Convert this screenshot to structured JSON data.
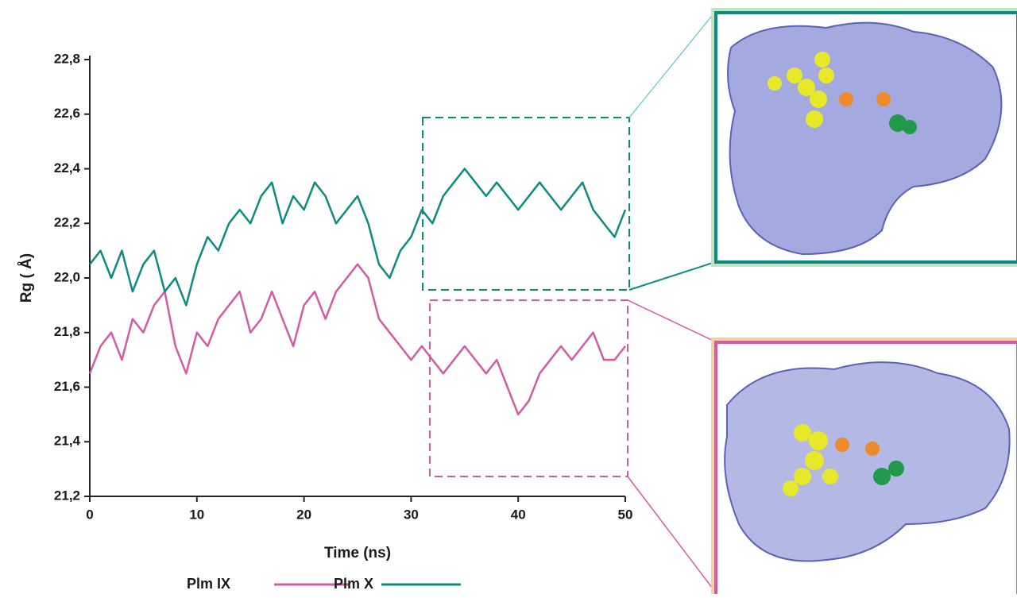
{
  "chart_data": {
    "type": "line",
    "x_label": "Time (ns)",
    "y_label": "Rg ( Å)",
    "x": [
      0,
      1,
      2,
      3,
      4,
      5,
      6,
      7,
      8,
      9,
      10,
      11,
      12,
      13,
      14,
      15,
      16,
      17,
      18,
      19,
      20,
      21,
      22,
      23,
      24,
      25,
      26,
      27,
      28,
      29,
      30,
      31,
      32,
      33,
      34,
      35,
      36,
      37,
      38,
      39,
      40,
      41,
      42,
      43,
      44,
      45,
      46,
      47,
      48,
      49,
      50
    ],
    "series": [
      {
        "name": "Plm IX",
        "color": "#d45aa6",
        "values": [
          21.65,
          21.75,
          21.8,
          21.7,
          21.85,
          21.8,
          21.9,
          21.95,
          21.75,
          21.65,
          21.8,
          21.75,
          21.85,
          21.9,
          21.95,
          21.8,
          21.85,
          21.95,
          21.85,
          21.75,
          21.9,
          21.95,
          21.85,
          21.95,
          22.0,
          22.05,
          22.0,
          21.85,
          21.8,
          21.75,
          21.7,
          21.75,
          21.7,
          21.65,
          21.7,
          21.75,
          21.7,
          21.65,
          21.7,
          21.6,
          21.5,
          21.55,
          21.65,
          21.7,
          21.75,
          21.7,
          21.75,
          21.8,
          21.7,
          21.7,
          21.75
        ]
      },
      {
        "name": "Plm X",
        "color": "#0e8b80",
        "values": [
          22.05,
          22.1,
          22.0,
          22.1,
          21.95,
          22.05,
          22.1,
          21.95,
          22.0,
          21.9,
          22.05,
          22.15,
          22.1,
          22.2,
          22.25,
          22.2,
          22.3,
          22.35,
          22.2,
          22.3,
          22.25,
          22.35,
          22.3,
          22.2,
          22.25,
          22.3,
          22.2,
          22.05,
          22.0,
          22.1,
          22.15,
          22.25,
          22.2,
          22.3,
          22.35,
          22.4,
          22.35,
          22.3,
          22.35,
          22.3,
          22.25,
          22.3,
          22.35,
          22.3,
          22.25,
          22.3,
          22.35,
          22.25,
          22.2,
          22.15,
          22.25
        ]
      }
    ],
    "xlim": [
      0,
      50
    ],
    "xticks": [
      0,
      10,
      20,
      30,
      40,
      50
    ],
    "ylim": [
      21.2,
      22.8
    ],
    "yticks": [
      {
        "value": 21.2,
        "label": "21,2"
      },
      {
        "value": 21.4,
        "label": "21,4"
      },
      {
        "value": 21.6,
        "label": "21,6"
      },
      {
        "value": 21.8,
        "label": "21,8"
      },
      {
        "value": 22.0,
        "label": "22,0"
      },
      {
        "value": 22.2,
        "label": "22,2"
      },
      {
        "value": 22.4,
        "label": "22,4"
      },
      {
        "value": 22.6,
        "label": "22,6"
      },
      {
        "value": 22.8,
        "label": "22,8"
      }
    ]
  }
}
